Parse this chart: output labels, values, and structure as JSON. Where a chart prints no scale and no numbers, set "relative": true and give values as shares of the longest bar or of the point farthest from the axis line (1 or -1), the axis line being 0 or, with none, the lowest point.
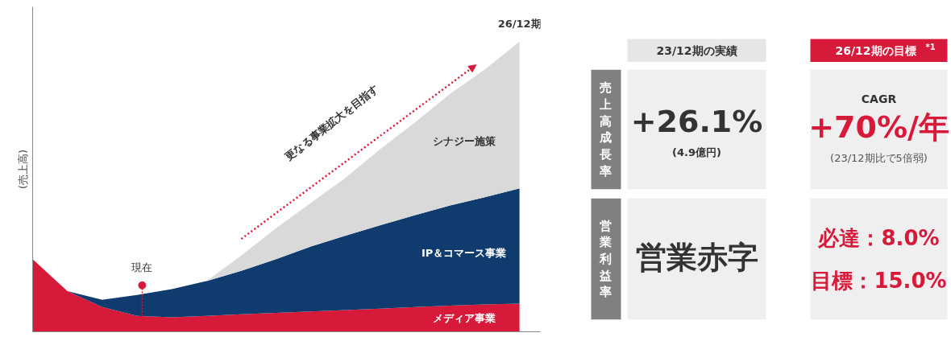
{
  "chart_data": [
    {
      "type": "area",
      "stacked": true,
      "relative": true,
      "ylabel": "(売上高)",
      "categories": [
        null,
        null,
        null,
        null,
        null,
        null,
        null,
        null,
        null,
        null,
        null,
        null,
        null,
        null,
        null
      ],
      "series": [
        {
          "name": "メディア事業",
          "color": "#d7193a",
          "values": [
            0.25,
            0.14,
            0.085,
            0.055,
            0.05,
            0.055,
            0.06,
            0.065,
            0.07,
            0.075,
            0.08,
            0.085,
            0.09,
            0.094,
            0.097
          ]
        },
        {
          "name": "IP＆コマース事業",
          "color": "#0f3b6e",
          "values": [
            0,
            0,
            0.025,
            0.072,
            0.097,
            0.12,
            0.15,
            0.185,
            0.224,
            0.256,
            0.287,
            0.317,
            0.345,
            0.37,
            0.397
          ]
        },
        {
          "name": "シナジー施策",
          "color": "#d9d9d9",
          "values": [
            0,
            0,
            0,
            0,
            0,
            0,
            0.053,
            0.107,
            0.15,
            0.2,
            0.263,
            0.32,
            0.385,
            0.44,
            0.506
          ]
        }
      ],
      "annotations": [
        "更なる事業拡大を目指す",
        "現在",
        "26/12期"
      ]
    },
    {
      "type": "other",
      "annotations": [
        "23/12期の実績",
        "26/12期の目標$^{*1}$",
        "売上高成長率",
        "営業利益率",
        "+26.1%",
        "(4.9億円)",
        "CAGR",
        "+70%/年",
        "(23/12期比で5倍弱)",
        "営業赤字",
        "必達：8.0%",
        "目標：15.0%"
      ]
    }
  ]
}
